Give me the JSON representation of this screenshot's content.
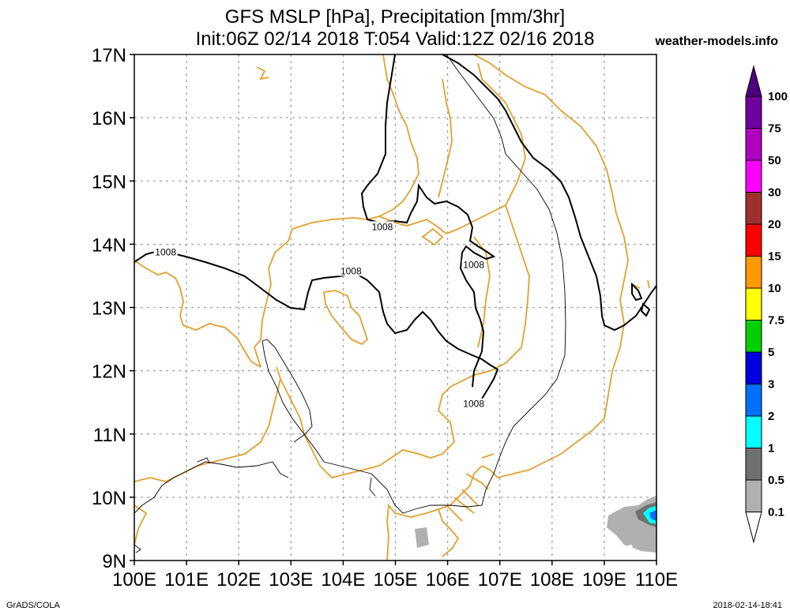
{
  "header": {
    "title_line1": "GFS MSLP [hPa], Precipitation [mm/3hr]",
    "title_line2": "Init:06Z 02/14 2018 T:054 Valid:12Z 02/16 2018",
    "site": "weather-models.info"
  },
  "footer": {
    "software": "GrADS/COLA",
    "timestamp": "2018-02-14-18:41"
  },
  "map": {
    "lat_labels": [
      "17N",
      "16N",
      "15N",
      "14N",
      "13N",
      "12N",
      "11N",
      "10N",
      "9N"
    ],
    "lon_labels": [
      "100E",
      "101E",
      "102E",
      "103E",
      "104E",
      "105E",
      "106E",
      "107E",
      "108E",
      "109E",
      "110E"
    ],
    "isobar_labels": [
      {
        "text": "1008",
        "lon": 100.6,
        "lat": 13.85
      },
      {
        "text": "1008",
        "lon": 104.15,
        "lat": 13.55
      },
      {
        "text": "1008",
        "lon": 104.75,
        "lat": 14.25
      },
      {
        "text": "1008",
        "lon": 106.5,
        "lat": 13.65
      },
      {
        "text": "1008",
        "lon": 106.5,
        "lat": 11.45
      }
    ],
    "colors": {
      "coast": "#e0a030",
      "grid": "#a0a0a0"
    }
  },
  "legend": {
    "items": [
      {
        "label": "100",
        "color": "#7000a0"
      },
      {
        "label": "75",
        "color": "#b000c0"
      },
      {
        "label": "50",
        "color": "#ff00ff"
      },
      {
        "label": "30",
        "color": "#a03030"
      },
      {
        "label": "20",
        "color": "#ff0000"
      },
      {
        "label": "15",
        "color": "#ff9900"
      },
      {
        "label": "10",
        "color": "#ffff00"
      },
      {
        "label": "7.5",
        "color": "#00d000"
      },
      {
        "label": "5",
        "color": "#0000e0"
      },
      {
        "label": "3",
        "color": "#0070ff"
      },
      {
        "label": "2",
        "color": "#00ffff"
      },
      {
        "label": "1",
        "color": "#707070"
      },
      {
        "label": "0.5",
        "color": "#b0b0b0"
      },
      {
        "label": "0.1",
        "color": "#ffffff"
      }
    ],
    "top_arrow_color": "#50007a"
  }
}
